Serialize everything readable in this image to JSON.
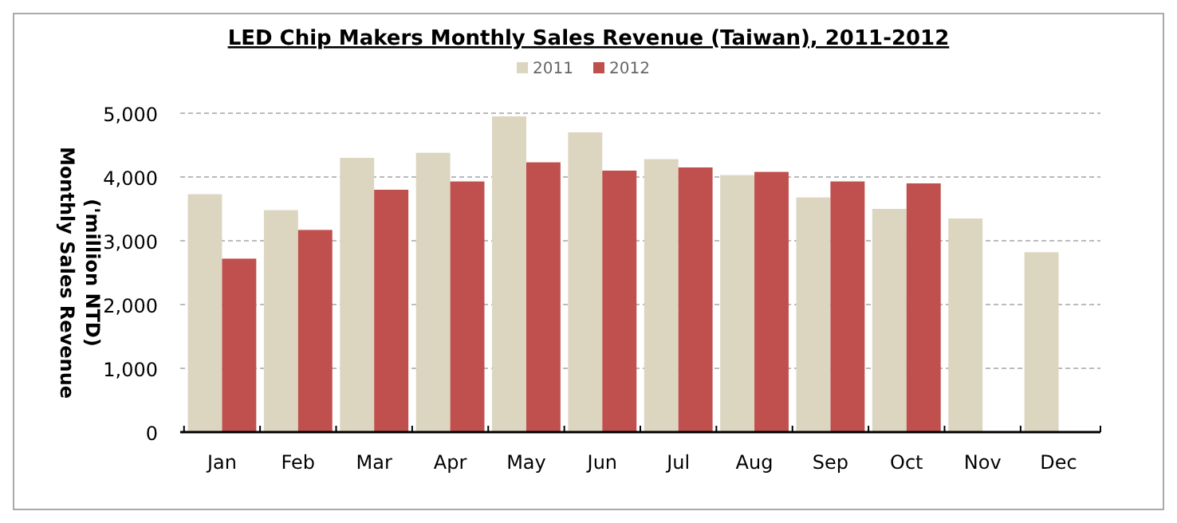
{
  "chart_data": {
    "type": "bar",
    "title": "LED Chip Makers Monthly Sales Revenue (Taiwan), 2011-2012",
    "ylabel": "Monthly Sales Revenue ('million NTD)",
    "categories": [
      "Jan",
      "Feb",
      "Mar",
      "Apr",
      "May",
      "Jun",
      "Jul",
      "Aug",
      "Sep",
      "Oct",
      "Nov",
      "Dec"
    ],
    "series": [
      {
        "name": "2011",
        "color": "#dcd6c1",
        "values": [
          3730,
          3480,
          4300,
          4380,
          4950,
          4700,
          4280,
          4030,
          3680,
          3500,
          3350,
          2820
        ]
      },
      {
        "name": "2012",
        "color": "#c0504d",
        "values": [
          2720,
          3170,
          3800,
          3930,
          4230,
          4100,
          4150,
          4080,
          3930,
          3900,
          null,
          null
        ]
      }
    ],
    "ylim": [
      0,
      5000
    ],
    "yticks": [
      {
        "value": 0,
        "label": "0"
      },
      {
        "value": 1000,
        "label": "1,000"
      },
      {
        "value": 2000,
        "label": "2,000"
      },
      {
        "value": 3000,
        "label": "3,000"
      },
      {
        "value": 4000,
        "label": "4,000"
      },
      {
        "value": 5000,
        "label": "5,000"
      }
    ],
    "grid": "y",
    "legend": "top"
  }
}
